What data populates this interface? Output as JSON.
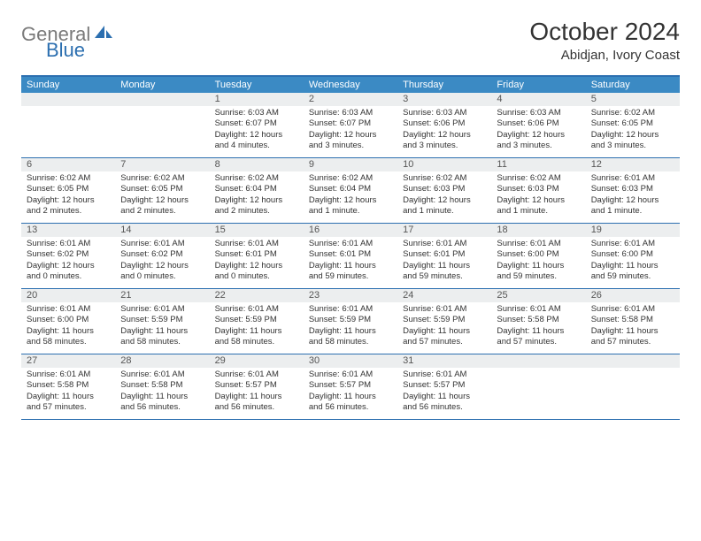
{
  "logo": {
    "text_grey": "General",
    "text_blue": "Blue"
  },
  "title": "October 2024",
  "location": "Abidjan, Ivory Coast",
  "colors": {
    "header_bar": "#3b8ac4",
    "border": "#2c6fb0",
    "daynum_bg": "#eceeef",
    "text": "#333333",
    "logo_grey": "#7a7a7a",
    "logo_blue": "#2c6fb0"
  },
  "weekdays": [
    "Sunday",
    "Monday",
    "Tuesday",
    "Wednesday",
    "Thursday",
    "Friday",
    "Saturday"
  ],
  "weeks": [
    [
      {
        "n": "",
        "lines": []
      },
      {
        "n": "",
        "lines": []
      },
      {
        "n": "1",
        "lines": [
          "Sunrise: 6:03 AM",
          "Sunset: 6:07 PM",
          "Daylight: 12 hours",
          "and 4 minutes."
        ]
      },
      {
        "n": "2",
        "lines": [
          "Sunrise: 6:03 AM",
          "Sunset: 6:07 PM",
          "Daylight: 12 hours",
          "and 3 minutes."
        ]
      },
      {
        "n": "3",
        "lines": [
          "Sunrise: 6:03 AM",
          "Sunset: 6:06 PM",
          "Daylight: 12 hours",
          "and 3 minutes."
        ]
      },
      {
        "n": "4",
        "lines": [
          "Sunrise: 6:03 AM",
          "Sunset: 6:06 PM",
          "Daylight: 12 hours",
          "and 3 minutes."
        ]
      },
      {
        "n": "5",
        "lines": [
          "Sunrise: 6:02 AM",
          "Sunset: 6:05 PM",
          "Daylight: 12 hours",
          "and 3 minutes."
        ]
      }
    ],
    [
      {
        "n": "6",
        "lines": [
          "Sunrise: 6:02 AM",
          "Sunset: 6:05 PM",
          "Daylight: 12 hours",
          "and 2 minutes."
        ]
      },
      {
        "n": "7",
        "lines": [
          "Sunrise: 6:02 AM",
          "Sunset: 6:05 PM",
          "Daylight: 12 hours",
          "and 2 minutes."
        ]
      },
      {
        "n": "8",
        "lines": [
          "Sunrise: 6:02 AM",
          "Sunset: 6:04 PM",
          "Daylight: 12 hours",
          "and 2 minutes."
        ]
      },
      {
        "n": "9",
        "lines": [
          "Sunrise: 6:02 AM",
          "Sunset: 6:04 PM",
          "Daylight: 12 hours",
          "and 1 minute."
        ]
      },
      {
        "n": "10",
        "lines": [
          "Sunrise: 6:02 AM",
          "Sunset: 6:03 PM",
          "Daylight: 12 hours",
          "and 1 minute."
        ]
      },
      {
        "n": "11",
        "lines": [
          "Sunrise: 6:02 AM",
          "Sunset: 6:03 PM",
          "Daylight: 12 hours",
          "and 1 minute."
        ]
      },
      {
        "n": "12",
        "lines": [
          "Sunrise: 6:01 AM",
          "Sunset: 6:03 PM",
          "Daylight: 12 hours",
          "and 1 minute."
        ]
      }
    ],
    [
      {
        "n": "13",
        "lines": [
          "Sunrise: 6:01 AM",
          "Sunset: 6:02 PM",
          "Daylight: 12 hours",
          "and 0 minutes."
        ]
      },
      {
        "n": "14",
        "lines": [
          "Sunrise: 6:01 AM",
          "Sunset: 6:02 PM",
          "Daylight: 12 hours",
          "and 0 minutes."
        ]
      },
      {
        "n": "15",
        "lines": [
          "Sunrise: 6:01 AM",
          "Sunset: 6:01 PM",
          "Daylight: 12 hours",
          "and 0 minutes."
        ]
      },
      {
        "n": "16",
        "lines": [
          "Sunrise: 6:01 AM",
          "Sunset: 6:01 PM",
          "Daylight: 11 hours",
          "and 59 minutes."
        ]
      },
      {
        "n": "17",
        "lines": [
          "Sunrise: 6:01 AM",
          "Sunset: 6:01 PM",
          "Daylight: 11 hours",
          "and 59 minutes."
        ]
      },
      {
        "n": "18",
        "lines": [
          "Sunrise: 6:01 AM",
          "Sunset: 6:00 PM",
          "Daylight: 11 hours",
          "and 59 minutes."
        ]
      },
      {
        "n": "19",
        "lines": [
          "Sunrise: 6:01 AM",
          "Sunset: 6:00 PM",
          "Daylight: 11 hours",
          "and 59 minutes."
        ]
      }
    ],
    [
      {
        "n": "20",
        "lines": [
          "Sunrise: 6:01 AM",
          "Sunset: 6:00 PM",
          "Daylight: 11 hours",
          "and 58 minutes."
        ]
      },
      {
        "n": "21",
        "lines": [
          "Sunrise: 6:01 AM",
          "Sunset: 5:59 PM",
          "Daylight: 11 hours",
          "and 58 minutes."
        ]
      },
      {
        "n": "22",
        "lines": [
          "Sunrise: 6:01 AM",
          "Sunset: 5:59 PM",
          "Daylight: 11 hours",
          "and 58 minutes."
        ]
      },
      {
        "n": "23",
        "lines": [
          "Sunrise: 6:01 AM",
          "Sunset: 5:59 PM",
          "Daylight: 11 hours",
          "and 58 minutes."
        ]
      },
      {
        "n": "24",
        "lines": [
          "Sunrise: 6:01 AM",
          "Sunset: 5:59 PM",
          "Daylight: 11 hours",
          "and 57 minutes."
        ]
      },
      {
        "n": "25",
        "lines": [
          "Sunrise: 6:01 AM",
          "Sunset: 5:58 PM",
          "Daylight: 11 hours",
          "and 57 minutes."
        ]
      },
      {
        "n": "26",
        "lines": [
          "Sunrise: 6:01 AM",
          "Sunset: 5:58 PM",
          "Daylight: 11 hours",
          "and 57 minutes."
        ]
      }
    ],
    [
      {
        "n": "27",
        "lines": [
          "Sunrise: 6:01 AM",
          "Sunset: 5:58 PM",
          "Daylight: 11 hours",
          "and 57 minutes."
        ]
      },
      {
        "n": "28",
        "lines": [
          "Sunrise: 6:01 AM",
          "Sunset: 5:58 PM",
          "Daylight: 11 hours",
          "and 56 minutes."
        ]
      },
      {
        "n": "29",
        "lines": [
          "Sunrise: 6:01 AM",
          "Sunset: 5:57 PM",
          "Daylight: 11 hours",
          "and 56 minutes."
        ]
      },
      {
        "n": "30",
        "lines": [
          "Sunrise: 6:01 AM",
          "Sunset: 5:57 PM",
          "Daylight: 11 hours",
          "and 56 minutes."
        ]
      },
      {
        "n": "31",
        "lines": [
          "Sunrise: 6:01 AM",
          "Sunset: 5:57 PM",
          "Daylight: 11 hours",
          "and 56 minutes."
        ]
      },
      {
        "n": "",
        "lines": []
      },
      {
        "n": "",
        "lines": []
      }
    ]
  ]
}
